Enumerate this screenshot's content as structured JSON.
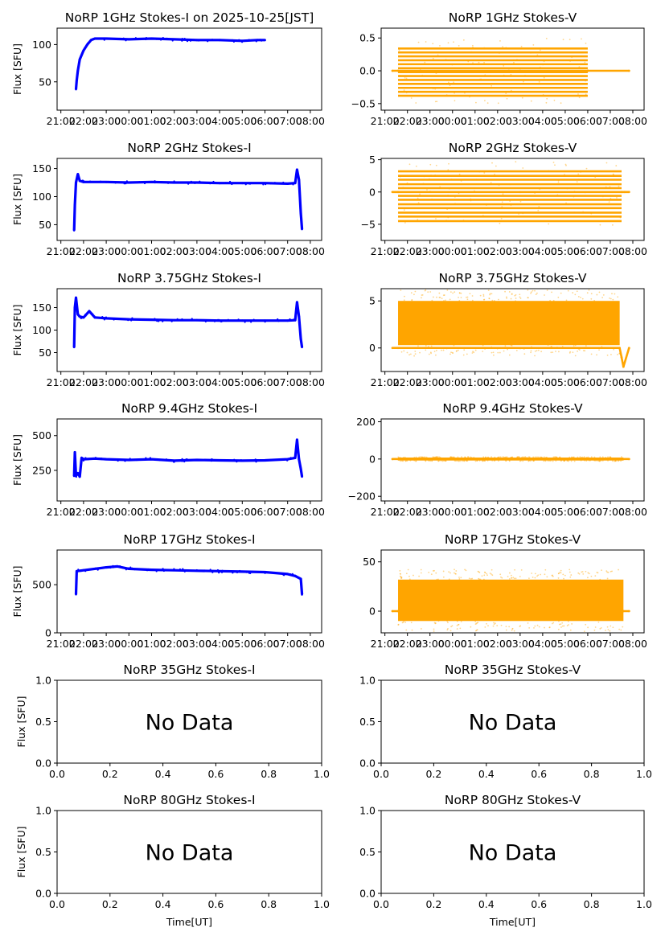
{
  "chart_data": [
    {
      "id": "i1",
      "type": "scatter",
      "title": "NoRP 1GHz Stokes-I on 2025-10-25[JST]",
      "ylabel": "Flux [SFU]",
      "xlabel": "",
      "series": [
        {
          "color": "#0000ff",
          "x": [
            "21:40",
            "21:42",
            "21:45",
            "21:50",
            "22:00",
            "22:10",
            "22:20",
            "22:30",
            "23:00",
            "00:00",
            "01:00",
            "02:00",
            "03:00",
            "04:00",
            "05:00",
            "05:40",
            "06:00"
          ],
          "y": [
            40,
            52,
            65,
            80,
            92,
            100,
            106,
            108,
            108,
            107,
            108,
            107,
            106,
            106,
            105,
            106,
            106
          ]
        }
      ],
      "yticks": [
        50,
        100
      ],
      "ylim": [
        12,
        122
      ],
      "xticks": [
        "21:00",
        "22:00",
        "23:00",
        "00:00",
        "01:00",
        "02:00",
        "03:00",
        "04:00",
        "05:00",
        "06:00",
        "07:00",
        "08:00"
      ],
      "xlim": [
        "20:50",
        "08:30"
      ],
      "no_data": false
    },
    {
      "id": "v1",
      "type": "scatter",
      "title": "NoRP 1GHz Stokes-V",
      "ylabel": "",
      "xlabel": "",
      "series": [
        {
          "color": "#ffa500",
          "x": [
            "21:20",
            "21:35",
            "02:30",
            "03:00",
            "06:00",
            "06:01",
            "07:50"
          ],
          "y": [
            0,
            0,
            0,
            0,
            0,
            0,
            0
          ]
        }
      ],
      "band": {
        "start": "21:35",
        "end": "06:00",
        "ymin": -0.38,
        "ymax": 0.38,
        "levels": [
          -0.38,
          -0.32,
          -0.26,
          -0.2,
          -0.14,
          -0.08,
          -0.02,
          0.04,
          0.1,
          0.16,
          0.22,
          0.28,
          0.34
        ]
      },
      "yticks": [
        -0.5,
        0.0,
        0.5
      ],
      "ylim": [
        -0.6,
        0.65
      ],
      "xticks": [
        "21:00",
        "22:00",
        "23:00",
        "00:00",
        "01:00",
        "02:00",
        "03:00",
        "04:00",
        "05:00",
        "06:00",
        "07:00",
        "08:00"
      ],
      "xlim": [
        "20:50",
        "08:30"
      ],
      "no_data": false
    },
    {
      "id": "i2",
      "type": "scatter",
      "title": "NoRP 2GHz Stokes-I",
      "ylabel": "Flux [SFU]",
      "xlabel": "",
      "series": [
        {
          "color": "#0000ff",
          "x": [
            "21:35",
            "21:37",
            "21:40",
            "21:45",
            "21:50",
            "22:00",
            "23:00",
            "00:00",
            "01:00",
            "02:00",
            "03:00",
            "04:00",
            "05:00",
            "06:00",
            "07:00",
            "07:20",
            "07:25",
            "07:30",
            "07:35",
            "07:38"
          ],
          "y": [
            40,
            85,
            125,
            140,
            128,
            126,
            126,
            125,
            126,
            125,
            125,
            124,
            124,
            124,
            123,
            124,
            148,
            130,
            70,
            42
          ]
        }
      ],
      "yticks": [
        50,
        100,
        150
      ],
      "ylim": [
        22,
        168
      ],
      "xticks": [
        "21:00",
        "22:00",
        "23:00",
        "00:00",
        "01:00",
        "02:00",
        "03:00",
        "04:00",
        "05:00",
        "06:00",
        "07:00",
        "08:00"
      ],
      "xlim": [
        "20:50",
        "08:30"
      ],
      "no_data": false
    },
    {
      "id": "v2",
      "type": "scatter",
      "title": "NoRP 2GHz Stokes-V",
      "ylabel": "",
      "xlabel": "",
      "series": [
        {
          "color": "#ffa500",
          "x": [
            "21:20",
            "21:35",
            "03:00",
            "07:30",
            "07:38",
            "07:50"
          ],
          "y": [
            0,
            0,
            0,
            0,
            0,
            0
          ]
        }
      ],
      "band": {
        "start": "21:35",
        "end": "07:30",
        "ymin": -4.5,
        "ymax": 3.5,
        "levels": [
          -4.5,
          -3.8,
          -3.2,
          -2.5,
          -1.9,
          -1.2,
          -0.6,
          0.6,
          1.2,
          1.9,
          2.5,
          3.2
        ]
      },
      "yticks": [
        -5,
        0,
        5
      ],
      "ylim": [
        -7.5,
        5.2
      ],
      "xticks": [
        "21:00",
        "22:00",
        "23:00",
        "00:00",
        "01:00",
        "02:00",
        "03:00",
        "04:00",
        "05:00",
        "06:00",
        "07:00",
        "08:00"
      ],
      "xlim": [
        "20:50",
        "08:30"
      ],
      "no_data": false
    },
    {
      "id": "i3",
      "type": "scatter",
      "title": "NoRP 3.75GHz Stokes-I",
      "ylabel": "Flux [SFU]",
      "xlabel": "",
      "series": [
        {
          "color": "#0000ff",
          "x": [
            "21:35",
            "21:37",
            "21:40",
            "21:45",
            "21:50",
            "22:00",
            "22:15",
            "22:30",
            "23:00",
            "00:00",
            "01:00",
            "02:00",
            "03:00",
            "04:00",
            "05:00",
            "06:00",
            "07:00",
            "07:20",
            "07:25",
            "07:30",
            "07:35",
            "07:38"
          ],
          "y": [
            62,
            150,
            172,
            135,
            130,
            128,
            142,
            128,
            126,
            124,
            123,
            122,
            122,
            121,
            121,
            121,
            121,
            122,
            162,
            130,
            80,
            62
          ]
        }
      ],
      "yticks": [
        50,
        100,
        150
      ],
      "ylim": [
        8,
        192
      ],
      "xticks": [
        "21:00",
        "22:00",
        "23:00",
        "00:00",
        "01:00",
        "02:00",
        "03:00",
        "04:00",
        "05:00",
        "06:00",
        "07:00",
        "08:00"
      ],
      "xlim": [
        "20:50",
        "08:30"
      ],
      "no_data": false
    },
    {
      "id": "v3",
      "type": "scatter",
      "title": "NoRP 3.75GHz Stokes-V",
      "ylabel": "",
      "xlabel": "",
      "series": [
        {
          "color": "#ffa500",
          "x": [
            "21:20",
            "21:35",
            "07:25",
            "07:30",
            "07:35",
            "07:50"
          ],
          "y": [
            0,
            0,
            0,
            -1,
            -2,
            0
          ]
        }
      ],
      "band": {
        "start": "21:35",
        "end": "07:25",
        "ymin": 0.3,
        "ymax": 5.0,
        "levels": []
      },
      "yticks": [
        0,
        5
      ],
      "ylim": [
        -2.5,
        6.3
      ],
      "xticks": [
        "21:00",
        "22:00",
        "23:00",
        "00:00",
        "01:00",
        "02:00",
        "03:00",
        "04:00",
        "05:00",
        "06:00",
        "07:00",
        "08:00"
      ],
      "xlim": [
        "20:50",
        "08:30"
      ],
      "no_data": false
    },
    {
      "id": "i4",
      "type": "scatter",
      "title": "NoRP 9.4GHz Stokes-I",
      "ylabel": "Flux [SFU]",
      "xlabel": "",
      "series": [
        {
          "color": "#0000ff",
          "x": [
            "21:35",
            "21:37",
            "21:40",
            "21:45",
            "21:50",
            "21:55",
            "22:00",
            "22:30",
            "23:00",
            "00:00",
            "01:00",
            "02:00",
            "03:00",
            "04:00",
            "05:00",
            "06:00",
            "07:00",
            "07:20",
            "07:25",
            "07:30",
            "07:35",
            "07:38"
          ],
          "y": [
            210,
            380,
            210,
            230,
            205,
            340,
            330,
            335,
            330,
            325,
            330,
            320,
            325,
            322,
            320,
            322,
            330,
            340,
            470,
            330,
            260,
            205
          ]
        }
      ],
      "yticks": [
        250,
        500
      ],
      "ylim": [
        30,
        620
      ],
      "xticks": [
        "21:00",
        "22:00",
        "23:00",
        "00:00",
        "01:00",
        "02:00",
        "03:00",
        "04:00",
        "05:00",
        "06:00",
        "07:00",
        "08:00"
      ],
      "xlim": [
        "20:50",
        "08:30"
      ],
      "no_data": false
    },
    {
      "id": "v4",
      "type": "scatter",
      "title": "NoRP 9.4GHz Stokes-V",
      "ylabel": "",
      "xlabel": "",
      "series": [
        {
          "color": "#ffa500",
          "x": [
            "21:20",
            "21:35",
            "07:35",
            "07:50"
          ],
          "y": [
            0,
            0,
            0,
            0
          ]
        }
      ],
      "band": {
        "start": "21:35",
        "end": "07:35",
        "ymin": -8,
        "ymax": 8,
        "levels": []
      },
      "yticks": [
        -200,
        0,
        200
      ],
      "ylim": [
        -225,
        215
      ],
      "xticks": [
        "21:00",
        "22:00",
        "23:00",
        "00:00",
        "01:00",
        "02:00",
        "03:00",
        "04:00",
        "05:00",
        "06:00",
        "07:00",
        "08:00"
      ],
      "xlim": [
        "20:50",
        "08:30"
      ],
      "no_data": false
    },
    {
      "id": "i5",
      "type": "scatter",
      "title": "NoRP 17GHz Stokes-I",
      "ylabel": "Flux [SFU]",
      "xlabel": "",
      "series": [
        {
          "color": "#0000ff",
          "x": [
            "21:40",
            "21:42",
            "22:00",
            "23:00",
            "23:30",
            "00:00",
            "01:00",
            "02:00",
            "03:00",
            "04:00",
            "05:00",
            "06:00",
            "07:00",
            "07:20",
            "07:35",
            "07:38"
          ],
          "y": [
            400,
            640,
            650,
            680,
            690,
            665,
            655,
            650,
            645,
            640,
            635,
            630,
            610,
            590,
            560,
            400
          ]
        }
      ],
      "yticks": [
        0,
        500
      ],
      "ylim": [
        0,
        860
      ],
      "xticks": [
        "21:00",
        "22:00",
        "23:00",
        "00:00",
        "01:00",
        "02:00",
        "03:00",
        "04:00",
        "05:00",
        "06:00",
        "07:00",
        "08:00"
      ],
      "xlim": [
        "20:50",
        "08:30"
      ],
      "no_data": false
    },
    {
      "id": "v5",
      "type": "scatter",
      "title": "NoRP 17GHz Stokes-V",
      "ylabel": "",
      "xlabel": "",
      "series": [
        {
          "color": "#ffa500",
          "x": [
            "21:20",
            "21:35",
            "07:35",
            "07:50"
          ],
          "y": [
            0,
            0,
            0,
            0
          ]
        }
      ],
      "band": {
        "start": "21:35",
        "end": "07:35",
        "ymin": -10,
        "ymax": 32,
        "levels": []
      },
      "yticks": [
        0,
        50
      ],
      "ylim": [
        -22,
        62
      ],
      "xticks": [
        "21:00",
        "22:00",
        "23:00",
        "00:00",
        "01:00",
        "02:00",
        "03:00",
        "04:00",
        "05:00",
        "06:00",
        "07:00",
        "08:00"
      ],
      "xlim": [
        "20:50",
        "08:30"
      ],
      "no_data": false
    },
    {
      "id": "i6",
      "type": "scatter",
      "title": "NoRP 35GHz Stokes-I",
      "ylabel": "Flux [SFU]",
      "xlabel": "",
      "series": [],
      "yticks": [
        0.0,
        0.5,
        1.0
      ],
      "ylim": [
        0,
        1
      ],
      "xticks": [
        0.0,
        0.2,
        0.4,
        0.6,
        0.8,
        1.0
      ],
      "xlim": [
        0,
        1
      ],
      "no_data": true,
      "annotation": "No Data"
    },
    {
      "id": "v6",
      "type": "scatter",
      "title": "NoRP 35GHz Stokes-V",
      "ylabel": "",
      "xlabel": "",
      "series": [],
      "yticks": [
        0.0,
        0.5,
        1.0
      ],
      "ylim": [
        0,
        1
      ],
      "xticks": [
        0.0,
        0.2,
        0.4,
        0.6,
        0.8,
        1.0
      ],
      "xlim": [
        0,
        1
      ],
      "no_data": true,
      "annotation": "No Data"
    },
    {
      "id": "i7",
      "type": "scatter",
      "title": "NoRP 80GHz Stokes-I",
      "ylabel": "Flux [SFU]",
      "xlabel": "Time[UT]",
      "series": [],
      "yticks": [
        0.0,
        0.5,
        1.0
      ],
      "ylim": [
        0,
        1
      ],
      "xticks": [
        0.0,
        0.2,
        0.4,
        0.6,
        0.8,
        1.0
      ],
      "xlim": [
        0,
        1
      ],
      "no_data": true,
      "annotation": "No Data"
    },
    {
      "id": "v7",
      "type": "scatter",
      "title": "NoRP 80GHz Stokes-V",
      "ylabel": "",
      "xlabel": "Time[UT]",
      "series": [],
      "yticks": [
        0.0,
        0.5,
        1.0
      ],
      "ylim": [
        0,
        1
      ],
      "xticks": [
        0.0,
        0.2,
        0.4,
        0.6,
        0.8,
        1.0
      ],
      "xlim": [
        0,
        1
      ],
      "no_data": true,
      "annotation": "No Data"
    }
  ]
}
